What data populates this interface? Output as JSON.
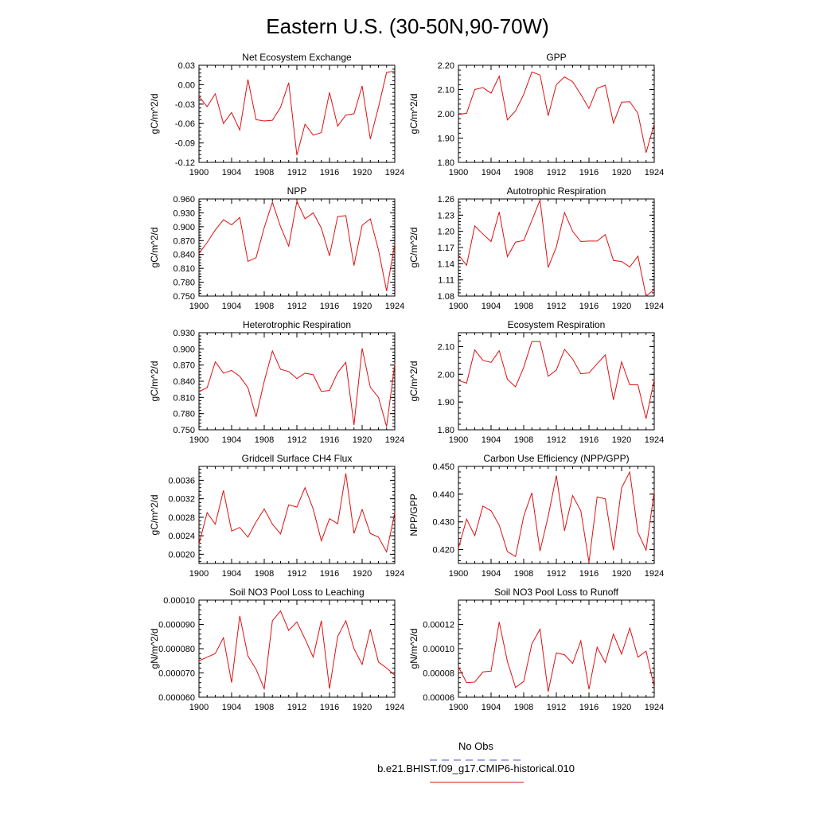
{
  "figure": {
    "title": "Eastern U.S. (30-50N,90-70W)",
    "legend": {
      "entries": [
        {
          "label": "No Obs",
          "color": "#5050c8",
          "dashed": true
        },
        {
          "label": "b.e21.BHIST.f09_g17.CMIP6-historical.010",
          "color": "#e01010",
          "dashed": false
        }
      ]
    }
  },
  "chart_data": [
    {
      "type": "line",
      "title": "Net Ecosystem Exchange",
      "ylabel": "gC/m^2/d",
      "xlim": [
        1900,
        1924
      ],
      "ylim": [
        -0.12,
        0.03
      ],
      "xticks": [
        1900,
        1904,
        1908,
        1912,
        1916,
        1920,
        1924
      ],
      "yticks": [
        "-0.12",
        "-0.09",
        "-0.06",
        "-0.03",
        "0.00",
        "0.03"
      ],
      "x": [
        1900,
        1901,
        1902,
        1903,
        1904,
        1905,
        1906,
        1907,
        1908,
        1909,
        1910,
        1911,
        1912,
        1913,
        1914,
        1915,
        1916,
        1917,
        1918,
        1919,
        1920,
        1921,
        1922,
        1923,
        1924
      ],
      "series": [
        {
          "color": "#e01010",
          "values": [
            -0.018,
            -0.034,
            -0.014,
            -0.06,
            -0.043,
            -0.07,
            0.008,
            -0.054,
            -0.056,
            -0.055,
            -0.035,
            0.003,
            -0.109,
            -0.061,
            -0.078,
            -0.074,
            -0.012,
            -0.064,
            -0.047,
            -0.045,
            -0.002,
            -0.084,
            -0.035,
            0.019,
            0.021
          ]
        }
      ]
    },
    {
      "type": "line",
      "title": "GPP",
      "ylabel": "gC/m^2/d",
      "xlim": [
        1900,
        1924
      ],
      "ylim": [
        1.8,
        2.2
      ],
      "xticks": [
        1900,
        1904,
        1908,
        1912,
        1916,
        1920,
        1924
      ],
      "yticks": [
        "1.80",
        "1.90",
        "2.00",
        "2.10",
        "2.20"
      ],
      "x": [
        1900,
        1901,
        1902,
        1903,
        1904,
        1905,
        1906,
        1907,
        1908,
        1909,
        1910,
        1911,
        1912,
        1913,
        1914,
        1915,
        1916,
        1917,
        1918,
        1919,
        1920,
        1921,
        1922,
        1923,
        1924
      ],
      "series": [
        {
          "color": "#e01010",
          "values": [
            1.997,
            2.002,
            2.1,
            2.108,
            2.085,
            2.155,
            1.975,
            2.012,
            2.08,
            2.172,
            2.16,
            1.992,
            2.12,
            2.152,
            2.132,
            2.08,
            2.022,
            2.105,
            2.118,
            1.962,
            2.048,
            2.05,
            2.002,
            1.84,
            1.958
          ]
        }
      ]
    },
    {
      "type": "line",
      "title": "NPP",
      "ylabel": "gC/m^2/d",
      "xlim": [
        1900,
        1924
      ],
      "ylim": [
        0.75,
        0.96
      ],
      "xticks": [
        1900,
        1904,
        1908,
        1912,
        1916,
        1920,
        1924
      ],
      "yticks": [
        "0.750",
        "0.780",
        "0.810",
        "0.840",
        "0.870",
        "0.900",
        "0.930",
        "0.960"
      ],
      "x": [
        1900,
        1901,
        1902,
        1903,
        1904,
        1905,
        1906,
        1907,
        1908,
        1909,
        1910,
        1911,
        1912,
        1913,
        1914,
        1915,
        1916,
        1917,
        1918,
        1919,
        1920,
        1921,
        1922,
        1923,
        1924
      ],
      "series": [
        {
          "color": "#e01010",
          "values": [
            0.842,
            0.866,
            0.893,
            0.915,
            0.904,
            0.92,
            0.825,
            0.833,
            0.898,
            0.953,
            0.9,
            0.858,
            0.955,
            0.917,
            0.93,
            0.897,
            0.837,
            0.922,
            0.924,
            0.816,
            0.903,
            0.917,
            0.85,
            0.761,
            0.863
          ]
        }
      ]
    },
    {
      "type": "line",
      "title": "Autotrophic Respiration",
      "ylabel": "gC/m^2/d",
      "xlim": [
        1900,
        1924
      ],
      "ylim": [
        1.08,
        1.26
      ],
      "xticks": [
        1900,
        1904,
        1908,
        1912,
        1916,
        1920,
        1924
      ],
      "yticks": [
        "1.08",
        "1.11",
        "1.14",
        "1.17",
        "1.20",
        "1.23",
        "1.26"
      ],
      "x": [
        1900,
        1901,
        1902,
        1903,
        1904,
        1905,
        1906,
        1907,
        1908,
        1909,
        1910,
        1911,
        1912,
        1913,
        1914,
        1915,
        1916,
        1917,
        1918,
        1919,
        1920,
        1921,
        1922,
        1923,
        1924
      ],
      "series": [
        {
          "color": "#e01010",
          "values": [
            1.156,
            1.137,
            1.21,
            1.195,
            1.181,
            1.236,
            1.153,
            1.18,
            1.183,
            1.22,
            1.258,
            1.133,
            1.171,
            1.235,
            1.2,
            1.181,
            1.182,
            1.182,
            1.194,
            1.146,
            1.144,
            1.134,
            1.154,
            1.08,
            1.092
          ]
        }
      ]
    },
    {
      "type": "line",
      "title": "Heterotrophic Respiration",
      "ylabel": "gC/m^2/d",
      "xlim": [
        1900,
        1924
      ],
      "ylim": [
        0.75,
        0.93
      ],
      "xticks": [
        1900,
        1904,
        1908,
        1912,
        1916,
        1920,
        1924
      ],
      "yticks": [
        "0.750",
        "0.780",
        "0.810",
        "0.840",
        "0.870",
        "0.900",
        "0.930"
      ],
      "x": [
        1900,
        1901,
        1902,
        1903,
        1904,
        1905,
        1906,
        1907,
        1908,
        1909,
        1910,
        1911,
        1912,
        1913,
        1914,
        1915,
        1916,
        1917,
        1918,
        1919,
        1920,
        1921,
        1922,
        1923,
        1924
      ],
      "series": [
        {
          "color": "#e01010",
          "values": [
            0.821,
            0.828,
            0.876,
            0.855,
            0.86,
            0.849,
            0.828,
            0.774,
            0.84,
            0.896,
            0.862,
            0.858,
            0.845,
            0.855,
            0.852,
            0.821,
            0.823,
            0.856,
            0.875,
            0.759,
            0.901,
            0.829,
            0.81,
            0.756,
            0.872
          ]
        }
      ]
    },
    {
      "type": "line",
      "title": "Ecosystem Respiration",
      "ylabel": "gC/m^2/d",
      "xlim": [
        1900,
        1924
      ],
      "ylim": [
        1.8,
        2.15
      ],
      "xticks": [
        1900,
        1904,
        1908,
        1912,
        1916,
        1920,
        1924
      ],
      "yticks": [
        "1.80",
        "1.90",
        "2.00",
        "2.10"
      ],
      "x": [
        1900,
        1901,
        1902,
        1903,
        1904,
        1905,
        1906,
        1907,
        1908,
        1909,
        1910,
        1911,
        1912,
        1913,
        1914,
        1915,
        1916,
        1917,
        1918,
        1919,
        1920,
        1921,
        1922,
        1923,
        1924
      ],
      "series": [
        {
          "color": "#e01010",
          "values": [
            1.978,
            1.968,
            2.088,
            2.05,
            2.043,
            2.085,
            1.982,
            1.955,
            2.025,
            2.118,
            2.118,
            1.993,
            2.015,
            2.09,
            2.055,
            2.002,
            2.005,
            2.038,
            2.07,
            1.908,
            2.045,
            1.962,
            1.962,
            1.84,
            1.98
          ]
        }
      ]
    },
    {
      "type": "line",
      "title": "Gridcell Surface CH4 Flux",
      "ylabel": "gC/m^2/d",
      "xlim": [
        1900,
        1924
      ],
      "ylim": [
        0.0018,
        0.0039
      ],
      "xticks": [
        1900,
        1904,
        1908,
        1912,
        1916,
        1920,
        1924
      ],
      "yticks": [
        "0.0020",
        "0.0024",
        "0.0028",
        "0.0032",
        "0.0036"
      ],
      "x": [
        1900,
        1901,
        1902,
        1903,
        1904,
        1905,
        1906,
        1907,
        1908,
        1909,
        1910,
        1911,
        1912,
        1913,
        1914,
        1915,
        1916,
        1917,
        1918,
        1919,
        1920,
        1921,
        1922,
        1923,
        1924
      ],
      "series": [
        {
          "color": "#e01010",
          "values": [
            0.00222,
            0.0029,
            0.00265,
            0.00338,
            0.0025,
            0.00258,
            0.00237,
            0.0027,
            0.00298,
            0.00265,
            0.00244,
            0.00307,
            0.00302,
            0.00344,
            0.00298,
            0.00229,
            0.00277,
            0.00266,
            0.00375,
            0.00245,
            0.00297,
            0.00245,
            0.00237,
            0.00205,
            0.0029
          ]
        }
      ]
    },
    {
      "type": "line",
      "title": "Carbon Use Efficiency (NPP/GPP)",
      "ylabel": "NPP/GPP",
      "xlim": [
        1900,
        1924
      ],
      "ylim": [
        0.415,
        0.45
      ],
      "xticks": [
        1900,
        1904,
        1908,
        1912,
        1916,
        1920,
        1924
      ],
      "yticks": [
        "0.420",
        "0.430",
        "0.440",
        "0.450"
      ],
      "x": [
        1900,
        1901,
        1902,
        1903,
        1904,
        1905,
        1906,
        1907,
        1908,
        1909,
        1910,
        1911,
        1912,
        1913,
        1914,
        1915,
        1916,
        1917,
        1918,
        1919,
        1920,
        1921,
        1922,
        1923,
        1924
      ],
      "series": [
        {
          "color": "#e01010",
          "values": [
            0.4205,
            0.431,
            0.425,
            0.4357,
            0.434,
            0.4288,
            0.4193,
            0.4175,
            0.432,
            0.4405,
            0.4195,
            0.432,
            0.4467,
            0.4268,
            0.4395,
            0.434,
            0.4155,
            0.439,
            0.4383,
            0.4198,
            0.4423,
            0.448,
            0.4262,
            0.4198,
            0.441
          ]
        }
      ]
    },
    {
      "type": "line",
      "title": "Soil NO3 Pool Loss to Leaching",
      "ylabel": "gN/m^2/d",
      "xlim": [
        1900,
        1924
      ],
      "ylim": [
        6e-05,
        0.0001
      ],
      "xticks": [
        1900,
        1904,
        1908,
        1912,
        1916,
        1920,
        1924
      ],
      "yticks": [
        "0.000060",
        "0.000070",
        "0.000080",
        "0.000090",
        "0.00010"
      ],
      "x": [
        1900,
        1901,
        1902,
        1903,
        1904,
        1905,
        1906,
        1907,
        1908,
        1909,
        1910,
        1911,
        1912,
        1913,
        1914,
        1915,
        1916,
        1917,
        1918,
        1919,
        1920,
        1921,
        1922,
        1923,
        1924
      ],
      "series": [
        {
          "color": "#e01010",
          "values": [
            7.5e-05,
            7.65e-05,
            7.8e-05,
            8.45e-05,
            6.6e-05,
            9.35e-05,
            7.7e-05,
            7.15e-05,
            6.35e-05,
            9.15e-05,
            9.55e-05,
            8.75e-05,
            9.1e-05,
            8.4e-05,
            7.65e-05,
            9.15e-05,
            6.35e-05,
            8.5e-05,
            9.15e-05,
            8e-05,
            7.35e-05,
            8.8e-05,
            7.45e-05,
            7.2e-05,
            6.9e-05
          ]
        }
      ]
    },
    {
      "type": "line",
      "title": "Soil NO3 Pool Loss to Runoff",
      "ylabel": "gN/m^2/d",
      "xlim": [
        1900,
        1924
      ],
      "ylim": [
        6e-05,
        0.00014
      ],
      "xticks": [
        1900,
        1904,
        1908,
        1912,
        1916,
        1920,
        1924
      ],
      "yticks": [
        "0.00006",
        "0.00008",
        "0.00010",
        "0.00012"
      ],
      "x": [
        1900,
        1901,
        1902,
        1903,
        1904,
        1905,
        1906,
        1907,
        1908,
        1909,
        1910,
        1911,
        1912,
        1913,
        1914,
        1915,
        1916,
        1917,
        1918,
        1919,
        1920,
        1921,
        1922,
        1923,
        1924
      ],
      "series": [
        {
          "color": "#e01010",
          "values": [
            8.5e-05,
            7.2e-05,
            7.25e-05,
            8.08e-05,
            8.15e-05,
            0.000122,
            8.95e-05,
            6.8e-05,
            7.3e-05,
            0.000104,
            0.000116,
            6.45e-05,
            9.65e-05,
            9.5e-05,
            8.78e-05,
            0.0001065,
            6.65e-05,
            0.0001012,
            8.85e-05,
            0.000112,
            9.55e-05,
            0.000117,
            9.3e-05,
            9.8e-05,
            6.85e-05
          ]
        }
      ]
    }
  ]
}
